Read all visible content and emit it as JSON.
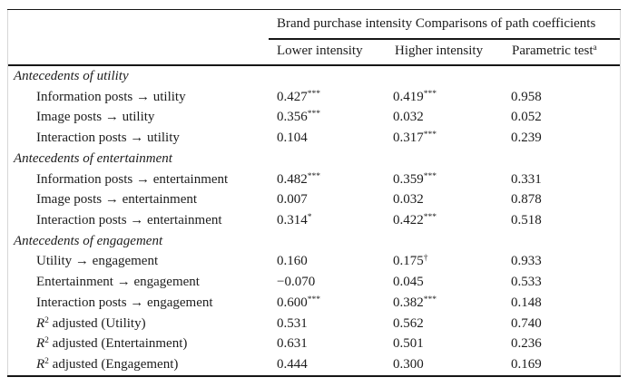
{
  "table": {
    "spanning_header": "Brand purchase intensity Comparisons of path coefficients",
    "columns": [
      {
        "label": "Lower intensity",
        "sup": ""
      },
      {
        "label": "Higher intensity",
        "sup": ""
      },
      {
        "label": "Parametric test",
        "sup": "a"
      }
    ],
    "rows": [
      {
        "type": "section",
        "label": "Antecedents of utility"
      },
      {
        "type": "data",
        "label": "Information posts → utility",
        "values": [
          {
            "v": "0.427",
            "sup": "***"
          },
          {
            "v": "0.419",
            "sup": "***"
          },
          {
            "v": "0.958",
            "sup": ""
          }
        ]
      },
      {
        "type": "data",
        "label": "Image posts → utility",
        "values": [
          {
            "v": "0.356",
            "sup": "***"
          },
          {
            "v": "0.032",
            "sup": ""
          },
          {
            "v": "0.052",
            "sup": ""
          }
        ]
      },
      {
        "type": "data",
        "label": "Interaction posts → utility",
        "values": [
          {
            "v": "0.104",
            "sup": ""
          },
          {
            "v": "0.317",
            "sup": "***"
          },
          {
            "v": "0.239",
            "sup": ""
          }
        ]
      },
      {
        "type": "section",
        "label": "Antecedents of entertainment"
      },
      {
        "type": "data",
        "label": "Information posts → entertainment",
        "values": [
          {
            "v": "0.482",
            "sup": "***"
          },
          {
            "v": "0.359",
            "sup": "***"
          },
          {
            "v": "0.331",
            "sup": ""
          }
        ]
      },
      {
        "type": "data",
        "label": "Image posts → entertainment",
        "values": [
          {
            "v": "0.007",
            "sup": ""
          },
          {
            "v": "0.032",
            "sup": ""
          },
          {
            "v": "0.878",
            "sup": ""
          }
        ]
      },
      {
        "type": "data",
        "label": "Interaction posts → entertainment",
        "values": [
          {
            "v": "0.314",
            "sup": "*"
          },
          {
            "v": "0.422",
            "sup": "***"
          },
          {
            "v": "0.518",
            "sup": ""
          }
        ]
      },
      {
        "type": "section",
        "label": "Antecedents of engagement"
      },
      {
        "type": "data",
        "label": "Utility → engagement",
        "values": [
          {
            "v": "0.160",
            "sup": ""
          },
          {
            "v": "0.175",
            "sup": "†"
          },
          {
            "v": "0.933",
            "sup": ""
          }
        ]
      },
      {
        "type": "data",
        "label": "Entertainment → engagement",
        "values": [
          {
            "v": "−0.070",
            "sup": ""
          },
          {
            "v": "0.045",
            "sup": ""
          },
          {
            "v": "0.533",
            "sup": ""
          }
        ]
      },
      {
        "type": "data",
        "label": "Interaction posts → engagement",
        "values": [
          {
            "v": "0.600",
            "sup": "***"
          },
          {
            "v": "0.382",
            "sup": "***"
          },
          {
            "v": "0.148",
            "sup": ""
          }
        ]
      },
      {
        "type": "data",
        "label_prefix": "R",
        "label_prefix_sup": "2",
        "label": " adjusted (Utility)",
        "values": [
          {
            "v": "0.531",
            "sup": ""
          },
          {
            "v": "0.562",
            "sup": ""
          },
          {
            "v": "0.740",
            "sup": ""
          }
        ]
      },
      {
        "type": "data",
        "label_prefix": "R",
        "label_prefix_sup": "2",
        "label": " adjusted (Entertainment)",
        "values": [
          {
            "v": "0.631",
            "sup": ""
          },
          {
            "v": "0.501",
            "sup": ""
          },
          {
            "v": "0.236",
            "sup": ""
          }
        ]
      },
      {
        "type": "data",
        "label_prefix": "R",
        "label_prefix_sup": "2",
        "label": " adjusted (Engagement)",
        "values": [
          {
            "v": "0.444",
            "sup": ""
          },
          {
            "v": "0.300",
            "sup": ""
          },
          {
            "v": "0.169",
            "sup": ""
          }
        ]
      }
    ]
  }
}
